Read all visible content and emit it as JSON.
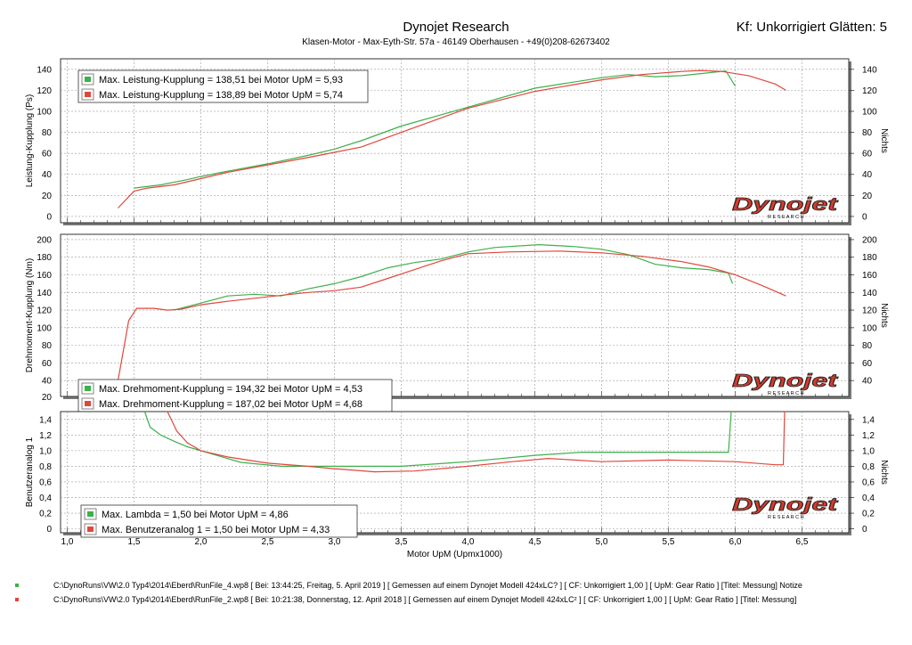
{
  "header": {
    "title": "Dynojet Research",
    "subtitle": "Klasen-Motor    -    Max-Eyth-Str. 57a    -    46149 Oberhausen    -    +49(0)208-62673402",
    "kf": "Kf: Unkorrigiert Glätten: 5"
  },
  "colors": {
    "run1": "#3db04a",
    "run2": "#e0473c",
    "grid": "#9a9a9a",
    "logo": "#d93a2a"
  },
  "logo": {
    "text": "Dynojet",
    "sub": "R E S E A R C H"
  },
  "x_axis": {
    "label": "Motor UpM (Upmx1000)",
    "ticks": [
      "1,0",
      "1,5",
      "2,0",
      "2,5",
      "3,0",
      "3,5",
      "4,0",
      "4,5",
      "5,0",
      "5,5",
      "6,0",
      "6,5"
    ],
    "range": [
      0.95,
      6.85
    ]
  },
  "legends": {
    "power": [
      "Max. Leistung-Kupplung = 138,51 bei Motor UpM = 5,93",
      "Max. Leistung-Kupplung = 138,89 bei Motor UpM = 5,74"
    ],
    "torque": [
      "Max. Drehmoment-Kupplung = 194,32 bei Motor UpM = 4,53",
      "Max. Drehmoment-Kupplung = 187,02 bei Motor UpM = 4,68"
    ],
    "analog": [
      "Max. Lambda = 1,50 bei Motor UpM = 4,86",
      "Max. Benutzeranalog 1 = 1,50 bei Motor UpM = 4,33"
    ]
  },
  "chart_data": [
    {
      "type": "line",
      "ylabel": "Leistung-Kupplung (Ps)",
      "ylabel_right": "Nichts",
      "ylim": [
        -6,
        150
      ],
      "yticks": [
        "0",
        "20",
        "40",
        "60",
        "80",
        "100",
        "120",
        "140"
      ],
      "grid": true,
      "series": [
        {
          "name": "Max. Leistung-Kupplung = 138,51 bei Motor UpM = 5,93",
          "points": [
            [
              1.5,
              27
            ],
            [
              1.7,
              30
            ],
            [
              1.9,
              35
            ],
            [
              2.0,
              38
            ],
            [
              2.2,
              43
            ],
            [
              2.5,
              50
            ],
            [
              2.8,
              58
            ],
            [
              3.0,
              64
            ],
            [
              3.2,
              72
            ],
            [
              3.5,
              86
            ],
            [
              4.0,
              104
            ],
            [
              4.5,
              122
            ],
            [
              5.0,
              132
            ],
            [
              5.2,
              135
            ],
            [
              5.4,
              133
            ],
            [
              5.6,
              134
            ],
            [
              5.93,
              138.51
            ],
            [
              6.0,
              124
            ]
          ]
        },
        {
          "name": "Max. Leistung-Kupplung = 138,89 bei Motor UpM = 5,74",
          "points": [
            [
              1.38,
              8
            ],
            [
              1.5,
              24
            ],
            [
              1.6,
              27
            ],
            [
              1.8,
              30
            ],
            [
              2.0,
              36
            ],
            [
              2.2,
              42
            ],
            [
              2.5,
              49
            ],
            [
              2.8,
              56
            ],
            [
              3.0,
              61
            ],
            [
              3.2,
              66
            ],
            [
              3.5,
              80
            ],
            [
              4.0,
              103
            ],
            [
              4.5,
              119
            ],
            [
              5.0,
              130
            ],
            [
              5.3,
              135
            ],
            [
              5.6,
              138
            ],
            [
              5.74,
              138.89
            ],
            [
              5.9,
              138
            ],
            [
              6.1,
              134
            ],
            [
              6.3,
              126
            ],
            [
              6.38,
              120
            ]
          ]
        }
      ]
    },
    {
      "type": "line",
      "ylabel": "Drehmoment-Kupplung (Nm)",
      "ylabel_right": "Nichts",
      "ylim": [
        22,
        206
      ],
      "yticks": [
        "40",
        "60",
        "80",
        "100",
        "120",
        "140",
        "160",
        "180",
        "200"
      ],
      "yticks_left_extra": [
        "20"
      ],
      "grid": true,
      "series": [
        {
          "name": "Max. Drehmoment-Kupplung = 194,32 bei Motor UpM = 4,53",
          "points": [
            [
              1.8,
              120
            ],
            [
              1.9,
              124
            ],
            [
              2.0,
              128
            ],
            [
              2.2,
              136
            ],
            [
              2.4,
              138
            ],
            [
              2.6,
              136
            ],
            [
              2.8,
              144
            ],
            [
              3.0,
              150
            ],
            [
              3.2,
              158
            ],
            [
              3.4,
              168
            ],
            [
              3.6,
              174
            ],
            [
              3.8,
              178
            ],
            [
              4.0,
              186
            ],
            [
              4.2,
              191
            ],
            [
              4.53,
              194.32
            ],
            [
              4.8,
              192
            ],
            [
              5.0,
              189
            ],
            [
              5.2,
              183
            ],
            [
              5.4,
              172
            ],
            [
              5.6,
              168
            ],
            [
              5.8,
              166
            ],
            [
              5.95,
              162
            ],
            [
              5.98,
              150
            ]
          ]
        },
        {
          "name": "Max. Drehmoment-Kupplung = 187,02 bei Motor UpM = 4,68",
          "points": [
            [
              1.38,
              40
            ],
            [
              1.46,
              108
            ],
            [
              1.52,
              122
            ],
            [
              1.65,
              122
            ],
            [
              1.75,
              120
            ],
            [
              1.85,
              121
            ],
            [
              2.0,
              126
            ],
            [
              2.2,
              130
            ],
            [
              2.5,
              135
            ],
            [
              2.8,
              140
            ],
            [
              3.0,
              142
            ],
            [
              3.2,
              146
            ],
            [
              3.4,
              156
            ],
            [
              3.6,
              166
            ],
            [
              3.8,
              176
            ],
            [
              4.0,
              184
            ],
            [
              4.3,
              186
            ],
            [
              4.68,
              187.02
            ],
            [
              5.0,
              185
            ],
            [
              5.3,
              181
            ],
            [
              5.6,
              175
            ],
            [
              5.8,
              169
            ],
            [
              6.0,
              160
            ],
            [
              6.2,
              148
            ],
            [
              6.38,
              136
            ]
          ]
        }
      ]
    },
    {
      "type": "line",
      "ylabel": "Benutzeranalog 1",
      "ylabel_right": "Nichts",
      "ylim": [
        -0.05,
        1.5
      ],
      "yticks": [
        "0",
        "0,2",
        "0,4",
        "0,6",
        "0,8",
        "1,0",
        "1,2",
        "1,4"
      ],
      "grid": true,
      "series": [
        {
          "name": "Max. Lambda = 1,50 bei Motor UpM = 4,86",
          "points": [
            [
              1.58,
              1.5
            ],
            [
              1.62,
              1.3
            ],
            [
              1.7,
              1.2
            ],
            [
              1.8,
              1.12
            ],
            [
              1.9,
              1.05
            ],
            [
              2.0,
              1.0
            ],
            [
              2.3,
              0.85
            ],
            [
              2.6,
              0.8
            ],
            [
              3.0,
              0.8
            ],
            [
              3.5,
              0.8
            ],
            [
              4.0,
              0.86
            ],
            [
              4.5,
              0.94
            ],
            [
              4.85,
              0.98
            ],
            [
              5.3,
              0.98
            ],
            [
              5.6,
              0.98
            ],
            [
              5.95,
              0.98
            ],
            [
              5.97,
              1.5
            ]
          ]
        },
        {
          "name": "Max. Benutzeranalog 1 = 1,50 bei Motor UpM = 4,33",
          "points": [
            [
              1.75,
              1.5
            ],
            [
              1.82,
              1.25
            ],
            [
              1.9,
              1.1
            ],
            [
              2.0,
              1.0
            ],
            [
              2.2,
              0.92
            ],
            [
              2.5,
              0.84
            ],
            [
              2.8,
              0.8
            ],
            [
              3.0,
              0.77
            ],
            [
              3.3,
              0.73
            ],
            [
              3.6,
              0.74
            ],
            [
              4.0,
              0.8
            ],
            [
              4.33,
              0.86
            ],
            [
              4.6,
              0.9
            ],
            [
              5.0,
              0.86
            ],
            [
              5.5,
              0.88
            ],
            [
              6.0,
              0.86
            ],
            [
              6.3,
              0.82
            ],
            [
              6.36,
              0.82
            ],
            [
              6.37,
              1.5
            ]
          ]
        }
      ]
    }
  ],
  "footer": [
    "C:\\DynoRuns\\VW\\2.0 Typ4\\2014\\Eberd\\RunFile_4.wp8 [ Bei: 13:44:25, Freitag, 5. April 2019 ] [ Gemessen auf einem Dynojet Modell 424xLC? ] [ CF: Unkorrigiert 1,00 ] [ UpM: Gear Ratio ] [Titel: Messung]  Notize",
    "C:\\DynoRuns\\VW\\2.0 Typ4\\2014\\Eberd\\RunFile_2.wp8 [ Bei: 10:21:38, Donnerstag, 12. April 2018 ] [ Gemessen auf einem Dynojet Modell 424xLC² ] [ CF: Unkorrigiert 1,00 ] [ UpM: Gear Ratio ] [Titel: Messung]"
  ]
}
